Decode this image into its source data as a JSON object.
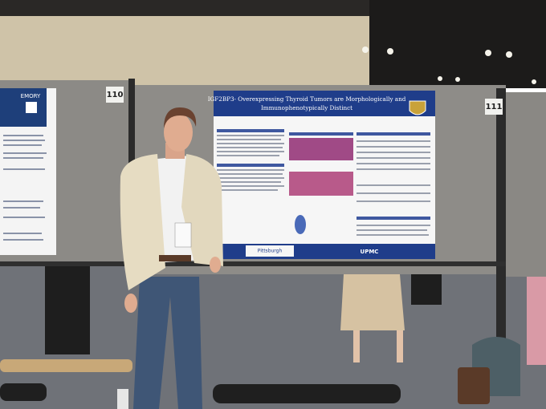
{
  "signs": {
    "left": "110",
    "right": "111"
  },
  "poster": {
    "title_line1": "IGF2BP3- Overexpressing Thyroid Tumors are Morphologically and",
    "title_line2": "Immunophenotypically Distinct",
    "footer_logo": "UPMC",
    "footer_university": "Pittsburgh"
  },
  "left_poster": {
    "logo": "EMORY"
  }
}
